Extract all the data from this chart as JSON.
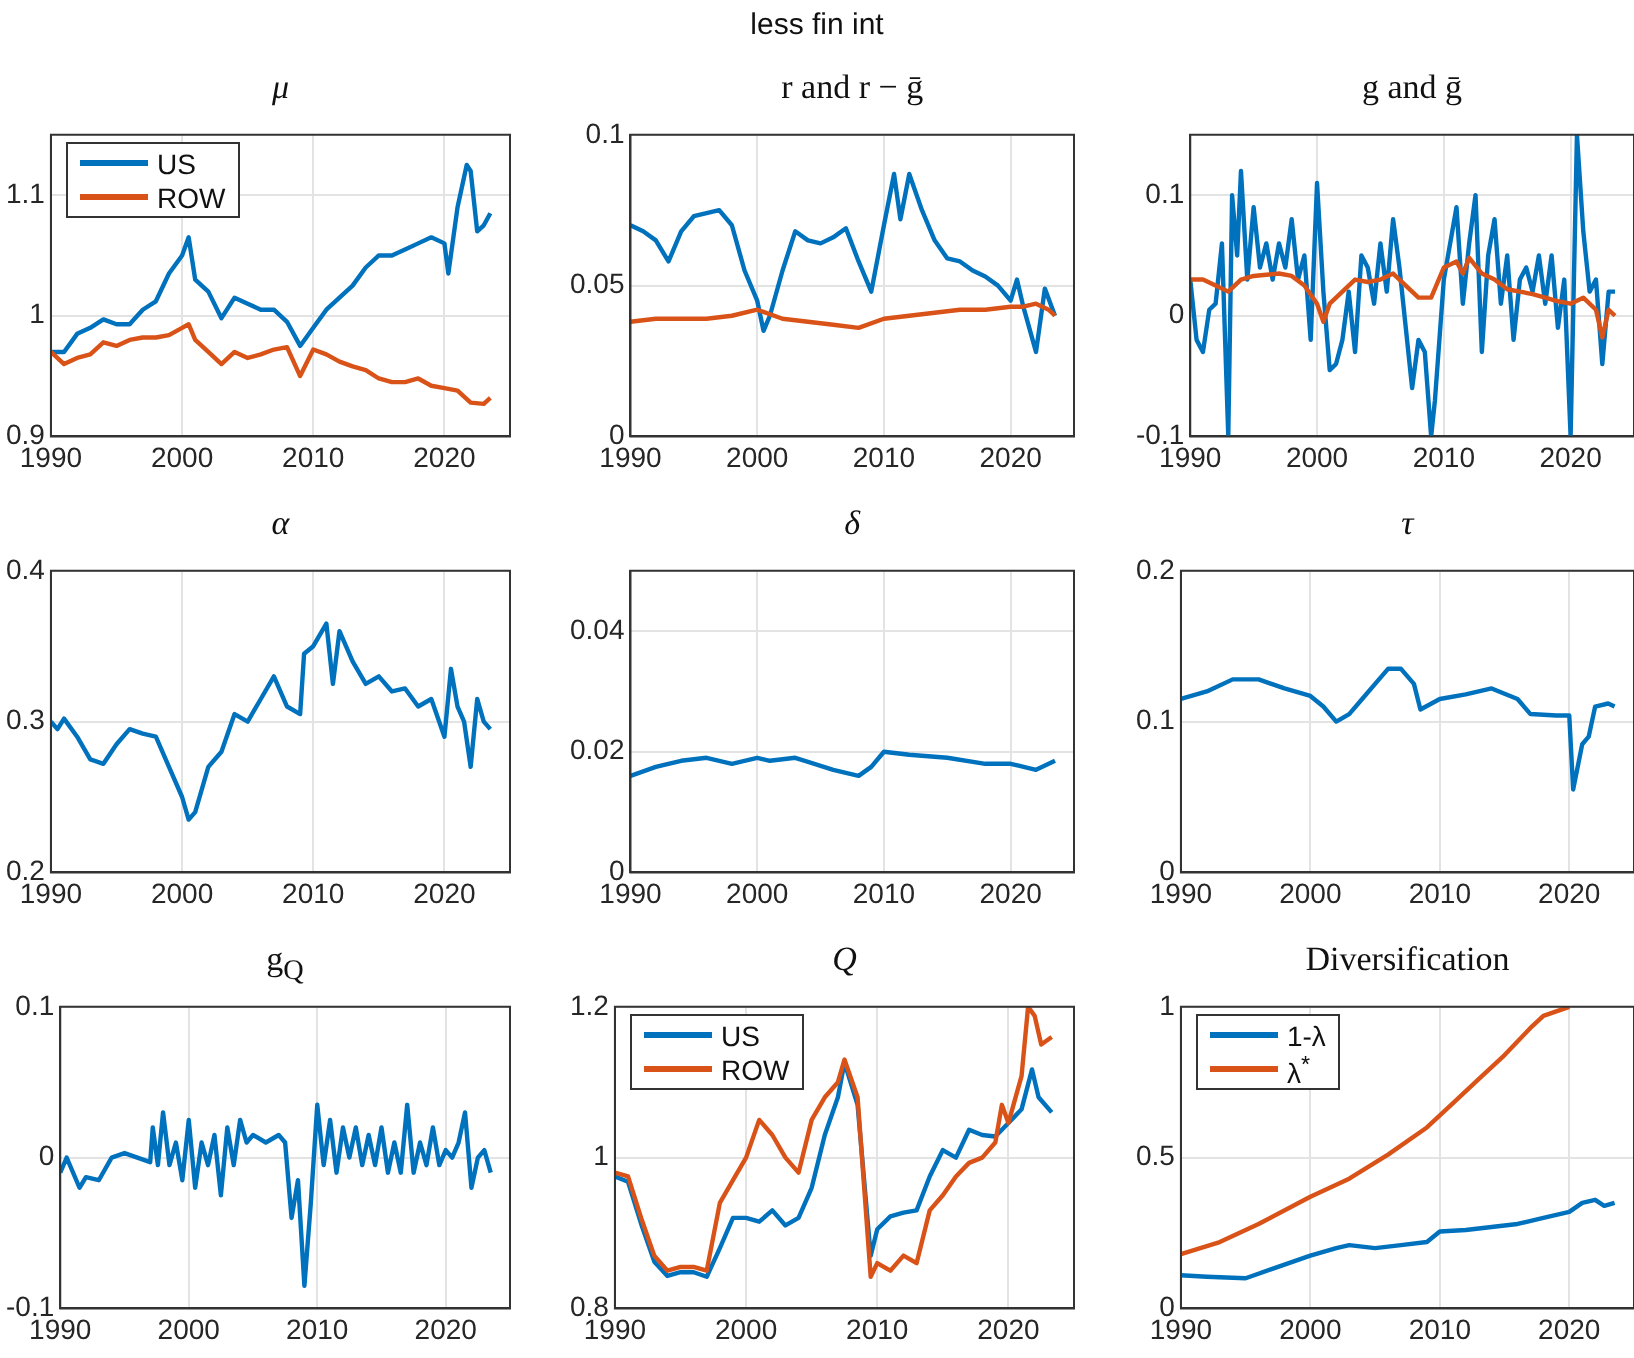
{
  "chart_data": [
    {
      "type": "line",
      "title": "μ",
      "annotations": [
        "less fin int"
      ],
      "xlim": [
        1990,
        2025
      ],
      "xticks": [
        1990,
        2000,
        2010,
        2020
      ],
      "ylim": [
        0.9,
        1.15
      ],
      "yticks": [
        0.9,
        1,
        1.1
      ],
      "grid": true,
      "legend": "top left",
      "series": [
        {
          "name": "US",
          "color": "#0072bd",
          "x": [
            1990,
            1991,
            1992,
            1993,
            1994,
            1995,
            1996,
            1997,
            1998,
            1999,
            2000,
            2000.5,
            2001,
            2002,
            2003,
            2004,
            2005,
            2006,
            2007,
            2008,
            2009,
            2010,
            2011,
            2012,
            2013,
            2014,
            2015,
            2016,
            2017,
            2018,
            2019,
            2020,
            2020.3,
            2021,
            2021.7,
            2022,
            2022.5,
            2023,
            2023.5
          ],
          "values": [
            0.97,
            0.97,
            0.985,
            0.99,
            0.997,
            0.993,
            0.993,
            1.005,
            1.012,
            1.035,
            1.05,
            1.065,
            1.03,
            1.02,
            0.998,
            1.015,
            1.01,
            1.005,
            1.005,
            0.995,
            0.975,
            0.99,
            1.005,
            1.015,
            1.025,
            1.04,
            1.05,
            1.05,
            1.055,
            1.06,
            1.065,
            1.06,
            1.035,
            1.09,
            1.125,
            1.12,
            1.07,
            1.075,
            1.085
          ]
        },
        {
          "name": "ROW",
          "color": "#d95319",
          "x": [
            1990,
            1991,
            1992,
            1993,
            1994,
            1995,
            1996,
            1997,
            1998,
            1999,
            2000,
            2000.5,
            2001,
            2002,
            2003,
            2004,
            2005,
            2006,
            2007,
            2008,
            2009,
            2010,
            2011,
            2012,
            2013,
            2014,
            2015,
            2016,
            2017,
            2018,
            2019,
            2020,
            2021,
            2022,
            2023,
            2023.5
          ],
          "values": [
            0.97,
            0.96,
            0.965,
            0.968,
            0.978,
            0.975,
            0.98,
            0.982,
            0.982,
            0.984,
            0.99,
            0.993,
            0.98,
            0.97,
            0.96,
            0.97,
            0.965,
            0.968,
            0.972,
            0.974,
            0.95,
            0.972,
            0.968,
            0.962,
            0.958,
            0.955,
            0.948,
            0.945,
            0.945,
            0.948,
            0.942,
            0.94,
            0.938,
            0.928,
            0.927,
            0.932
          ]
        }
      ]
    },
    {
      "type": "line",
      "title": "r and r − ḡ",
      "xlim": [
        1990,
        2025
      ],
      "xticks": [
        1990,
        2000,
        2010,
        2020
      ],
      "ylim": [
        0,
        0.1
      ],
      "yticks": [
        0,
        0.05,
        0.1
      ],
      "grid": true,
      "series": [
        {
          "color": "#0072bd",
          "x": [
            1990,
            1991,
            1992,
            1993,
            1994,
            1995,
            1996,
            1997,
            1998,
            1999,
            2000,
            2000.5,
            2001,
            2002,
            2003,
            2004,
            2005,
            2006,
            2007,
            2008,
            2009,
            2010,
            2010.8,
            2011.3,
            2012,
            2013,
            2014,
            2015,
            2016,
            2017,
            2018,
            2019,
            2020,
            2020.5,
            2021,
            2022,
            2022.7,
            2023.5
          ],
          "values": [
            0.07,
            0.068,
            0.065,
            0.058,
            0.068,
            0.073,
            0.074,
            0.075,
            0.07,
            0.055,
            0.045,
            0.035,
            0.04,
            0.055,
            0.068,
            0.065,
            0.064,
            0.066,
            0.069,
            0.058,
            0.048,
            0.07,
            0.087,
            0.072,
            0.087,
            0.075,
            0.065,
            0.059,
            0.058,
            0.055,
            0.053,
            0.05,
            0.045,
            0.052,
            0.043,
            0.028,
            0.049,
            0.04
          ]
        },
        {
          "color": "#d95319",
          "x": [
            1990,
            1992,
            1994,
            1996,
            1998,
            2000,
            2002,
            2004,
            2006,
            2008,
            2010,
            2012,
            2014,
            2016,
            2018,
            2020,
            2021,
            2022,
            2023,
            2023.5
          ],
          "values": [
            0.038,
            0.039,
            0.039,
            0.039,
            0.04,
            0.042,
            0.039,
            0.038,
            0.037,
            0.036,
            0.039,
            0.04,
            0.041,
            0.042,
            0.042,
            0.043,
            0.043,
            0.044,
            0.042,
            0.04
          ]
        }
      ]
    },
    {
      "type": "line",
      "title": "g and ḡ",
      "xlim": [
        1990,
        2025
      ],
      "xticks": [
        1990,
        2000,
        2010,
        2020
      ],
      "ylim": [
        -0.1,
        0.15
      ],
      "yticks": [
        -0.1,
        0,
        0.1
      ],
      "grid": true,
      "series": [
        {
          "color": "#0072bd",
          "x": [
            1990,
            1990.5,
            1991,
            1991.5,
            1992,
            1992.5,
            1993,
            1993.3,
            1993.7,
            1994,
            1994.5,
            1995,
            1995.5,
            1996,
            1996.5,
            1997,
            1997.5,
            1998,
            1998.5,
            1999,
            1999.5,
            2000,
            2000.5,
            2001,
            2001.5,
            2002,
            2002.5,
            2003,
            2003.5,
            2004,
            2004.5,
            2005,
            2005.5,
            2006,
            2006.5,
            2007,
            2007.5,
            2008,
            2008.5,
            2009,
            2009.3,
            2010,
            2010.5,
            2011,
            2011.5,
            2012,
            2012.5,
            2013,
            2013.5,
            2014,
            2014.5,
            2015,
            2015.5,
            2016,
            2016.5,
            2017,
            2017.5,
            2018,
            2018.5,
            2019,
            2019.5,
            2020,
            2020.5,
            2021,
            2021.5,
            2022,
            2022.5,
            2023,
            2023.5
          ],
          "values": [
            0.03,
            -0.02,
            -0.03,
            0.005,
            0.01,
            0.06,
            -0.1,
            0.1,
            0.05,
            0.12,
            0.03,
            0.09,
            0.04,
            0.06,
            0.03,
            0.06,
            0.04,
            0.08,
            0.03,
            0.05,
            -0.02,
            0.11,
            0.02,
            -0.045,
            -0.04,
            -0.02,
            0.02,
            -0.03,
            0.05,
            0.04,
            0.01,
            0.06,
            0.02,
            0.08,
            0.04,
            -0.01,
            -0.06,
            -0.02,
            -0.03,
            -0.1,
            -0.07,
            0.03,
            0.06,
            0.09,
            0.01,
            0.06,
            0.1,
            -0.03,
            0.05,
            0.08,
            0.01,
            0.05,
            -0.02,
            0.03,
            0.04,
            0.02,
            0.05,
            0.01,
            0.05,
            -0.01,
            0.03,
            -0.1,
            0.15,
            0.07,
            0.02,
            0.03,
            -0.04,
            0.02,
            0.02
          ]
        },
        {
          "color": "#d95319",
          "x": [
            1990,
            1991,
            1992,
            1993,
            1994,
            1995,
            1996,
            1997,
            1998,
            1999,
            2000,
            2000.5,
            2001,
            2002,
            2003,
            2004,
            2005,
            2006,
            2007,
            2008,
            2009,
            2010,
            2011,
            2011.5,
            2012,
            2013,
            2014,
            2015,
            2016,
            2017,
            2018,
            2019,
            2020,
            2021,
            2022,
            2022.5,
            2023,
            2023.5
          ],
          "values": [
            0.03,
            0.03,
            0.025,
            0.02,
            0.03,
            0.033,
            0.034,
            0.035,
            0.033,
            0.025,
            0.01,
            -0.005,
            0.01,
            0.02,
            0.03,
            0.028,
            0.03,
            0.035,
            0.025,
            0.015,
            0.015,
            0.04,
            0.045,
            0.035,
            0.048,
            0.035,
            0.03,
            0.022,
            0.02,
            0.018,
            0.015,
            0.012,
            0.01,
            0.015,
            0.005,
            -0.018,
            0.005,
            0
          ]
        }
      ]
    },
    {
      "type": "line",
      "title": "α",
      "xlim": [
        1990,
        2025
      ],
      "xticks": [
        1990,
        2000,
        2010,
        2020
      ],
      "ylim": [
        0.2,
        0.4
      ],
      "yticks": [
        0.2,
        0.3,
        0.4
      ],
      "grid": true,
      "series": [
        {
          "color": "#0072bd",
          "x": [
            1990,
            1990.5,
            1991,
            1992,
            1993,
            1994,
            1995,
            1996,
            1997,
            1998,
            1999,
            2000,
            2000.5,
            2001,
            2002,
            2003,
            2004,
            2005,
            2006,
            2007,
            2008,
            2009,
            2009.3,
            2010,
            2011,
            2011.5,
            2012,
            2013,
            2014,
            2015,
            2016,
            2017,
            2018,
            2019,
            2020,
            2020.5,
            2021,
            2021.5,
            2022,
            2022.5,
            2023,
            2023.5
          ],
          "values": [
            0.3,
            0.295,
            0.302,
            0.29,
            0.275,
            0.272,
            0.285,
            0.295,
            0.292,
            0.29,
            0.27,
            0.25,
            0.235,
            0.24,
            0.27,
            0.28,
            0.305,
            0.3,
            0.315,
            0.33,
            0.31,
            0.305,
            0.345,
            0.35,
            0.365,
            0.325,
            0.36,
            0.34,
            0.325,
            0.33,
            0.32,
            0.322,
            0.31,
            0.315,
            0.29,
            0.335,
            0.31,
            0.3,
            0.27,
            0.315,
            0.3,
            0.295
          ]
        }
      ]
    },
    {
      "type": "line",
      "title": "δ",
      "xlim": [
        1990,
        2025
      ],
      "xticks": [
        1990,
        2000,
        2010,
        2020
      ],
      "ylim": [
        0,
        0.05
      ],
      "yticks": [
        0,
        0.02,
        0.04
      ],
      "grid": true,
      "series": [
        {
          "color": "#0072bd",
          "x": [
            1990,
            1992,
            1994,
            1996,
            1998,
            2000,
            2001,
            2003,
            2006,
            2008,
            2009,
            2010,
            2012,
            2015,
            2018,
            2020,
            2022,
            2023.5
          ],
          "values": [
            0.016,
            0.0175,
            0.0185,
            0.019,
            0.018,
            0.019,
            0.0185,
            0.019,
            0.017,
            0.016,
            0.0175,
            0.02,
            0.0195,
            0.019,
            0.018,
            0.018,
            0.017,
            0.0185
          ]
        }
      ]
    },
    {
      "type": "line",
      "title": "τ",
      "xlim": [
        1990,
        2025
      ],
      "xticks": [
        1990,
        2000,
        2010,
        2020
      ],
      "ylim": [
        0,
        0.2
      ],
      "yticks": [
        0,
        0.1,
        0.2
      ],
      "grid": true,
      "series": [
        {
          "color": "#0072bd",
          "x": [
            1990,
            1992,
            1994,
            1996,
            1998,
            2000,
            2001,
            2002,
            2003,
            2004,
            2005,
            2006,
            2007,
            2008,
            2008.5,
            2010,
            2012,
            2014,
            2016,
            2017,
            2019,
            2020,
            2020.3,
            2021,
            2021.5,
            2022,
            2023,
            2023.5
          ],
          "values": [
            0.115,
            0.12,
            0.128,
            0.128,
            0.122,
            0.117,
            0.11,
            0.1,
            0.105,
            0.115,
            0.125,
            0.135,
            0.135,
            0.125,
            0.108,
            0.115,
            0.118,
            0.122,
            0.115,
            0.105,
            0.104,
            0.104,
            0.055,
            0.085,
            0.09,
            0.11,
            0.112,
            0.11
          ]
        }
      ]
    },
    {
      "type": "line",
      "title": "g$_{Q}$",
      "xlim": [
        1990,
        2025
      ],
      "xticks": [
        1990,
        2000,
        2010,
        2020
      ],
      "ylim": [
        -0.1,
        0.1
      ],
      "yticks": [
        -0.1,
        0,
        0.1
      ],
      "grid": true,
      "series": [
        {
          "color": "#0072bd",
          "x": [
            1990,
            1990.5,
            1991.5,
            1992,
            1993,
            1994,
            1995,
            1996,
            1997,
            1997.2,
            1997.6,
            1998,
            1998.5,
            1999,
            1999.5,
            2000,
            2000.5,
            2001,
            2001.5,
            2002,
            2002.5,
            2003,
            2003.5,
            2004,
            2004.5,
            2005,
            2006,
            2007,
            2007.5,
            2008,
            2008.5,
            2009,
            2009.5,
            2010,
            2010.5,
            2011,
            2011.5,
            2012,
            2012.5,
            2013,
            2013.5,
            2014,
            2014.5,
            2015,
            2015.5,
            2016,
            2016.5,
            2017,
            2017.5,
            2018,
            2018.5,
            2019,
            2019.5,
            2020,
            2020.5,
            2021,
            2021.5,
            2022,
            2022.5,
            2023,
            2023.5
          ],
          "values": [
            -0.01,
            0,
            -0.02,
            -0.013,
            -0.015,
            0,
            0.003,
            0,
            -0.003,
            0.02,
            -0.005,
            0.03,
            -0.005,
            0.01,
            -0.015,
            0.025,
            -0.02,
            0.01,
            -0.005,
            0.015,
            -0.025,
            0.02,
            -0.005,
            0.025,
            0.01,
            0.015,
            0.01,
            0.015,
            0.01,
            -0.04,
            -0.015,
            -0.085,
            -0.03,
            0.035,
            -0.005,
            0.025,
            -0.01,
            0.02,
            0,
            0.02,
            -0.005,
            0.015,
            -0.005,
            0.02,
            -0.01,
            0.01,
            -0.01,
            0.035,
            -0.01,
            0.01,
            -0.005,
            0.02,
            -0.005,
            0.005,
            0,
            0.01,
            0.03,
            -0.02,
            0,
            0.005,
            -0.01
          ]
        }
      ]
    },
    {
      "type": "line",
      "title": "Q",
      "xlim": [
        1990,
        2025
      ],
      "xticks": [
        1990,
        2000,
        2010,
        2020
      ],
      "ylim": [
        0.8,
        1.2
      ],
      "yticks": [
        0.8,
        1,
        1.2
      ],
      "grid": true,
      "legend": "top left",
      "series": [
        {
          "name": "US",
          "color": "#0072bd",
          "x": [
            1990,
            1991,
            1992,
            1993,
            1994,
            1995,
            1996,
            1997,
            1998,
            1999,
            2000,
            2001,
            2002,
            2003,
            2004,
            2005,
            2006,
            2007,
            2007.5,
            2008.5,
            2009.5,
            2010,
            2011,
            2012,
            2013,
            2014,
            2015,
            2016,
            2017,
            2018,
            2019,
            2020,
            2021,
            2021.8,
            2022.3,
            2023.3
          ],
          "values": [
            0.975,
            0.968,
            0.912,
            0.862,
            0.843,
            0.848,
            0.848,
            0.842,
            0.88,
            0.92,
            0.92,
            0.915,
            0.93,
            0.91,
            0.92,
            0.96,
            1.03,
            1.08,
            1.126,
            1.07,
            0.87,
            0.905,
            0.922,
            0.927,
            0.93,
            0.975,
            1.01,
            1,
            1.037,
            1.03,
            1.028,
            1.046,
            1.064,
            1.117,
            1.08,
            1.06
          ]
        },
        {
          "name": "ROW",
          "color": "#d95319",
          "x": [
            1990,
            1991,
            1992,
            1993,
            1994,
            1995,
            1996,
            1997,
            1998,
            1999,
            2000,
            2001,
            2002,
            2003,
            2004,
            2005,
            2006,
            2007,
            2007.5,
            2008.5,
            2009.5,
            2010,
            2011,
            2012,
            2013,
            2014,
            2015,
            2016,
            2017,
            2018,
            2019,
            2019.5,
            2020,
            2021,
            2021.5,
            2022,
            2022.5,
            2023.3
          ],
          "values": [
            0.98,
            0.975,
            0.92,
            0.87,
            0.85,
            0.855,
            0.855,
            0.85,
            0.94,
            0.97,
            1,
            1.05,
            1.03,
            1,
            0.98,
            1.05,
            1.08,
            1.1,
            1.13,
            1.08,
            0.842,
            0.86,
            0.85,
            0.87,
            0.86,
            0.93,
            0.95,
            0.975,
            0.993,
            1,
            1.02,
            1.07,
            1.046,
            1.108,
            1.2,
            1.188,
            1.15,
            1.16
          ]
        }
      ]
    },
    {
      "type": "line",
      "title": "Diversification",
      "xlim": [
        1990,
        2025
      ],
      "xticks": [
        1990,
        2000,
        2010,
        2020
      ],
      "ylim": [
        0,
        1
      ],
      "yticks": [
        0,
        0.5,
        1
      ],
      "grid": true,
      "legend": "top left",
      "series": [
        {
          "name": "1-λ",
          "color": "#0072bd",
          "x": [
            1990,
            1992,
            1995,
            1997,
            1999,
            2000,
            2002,
            2003,
            2005,
            2007,
            2009,
            2010,
            2012,
            2014,
            2016,
            2018,
            2020,
            2021,
            2022,
            2022.7,
            2023.5
          ],
          "values": [
            0.11,
            0.105,
            0.1,
            0.13,
            0.16,
            0.175,
            0.2,
            0.21,
            0.2,
            0.21,
            0.22,
            0.255,
            0.26,
            0.27,
            0.28,
            0.3,
            0.32,
            0.35,
            0.36,
            0.34,
            0.35
          ]
        },
        {
          "name": "λ$^{*}$",
          "color": "#d95319",
          "x": [
            1990,
            1993,
            1996,
            2000,
            2003,
            2006,
            2009,
            2011,
            2013,
            2015,
            2017,
            2018,
            2020
          ],
          "values": [
            0.18,
            0.22,
            0.28,
            0.37,
            0.43,
            0.51,
            0.6,
            0.68,
            0.76,
            0.84,
            0.93,
            0.97,
            1
          ]
        }
      ]
    }
  ]
}
